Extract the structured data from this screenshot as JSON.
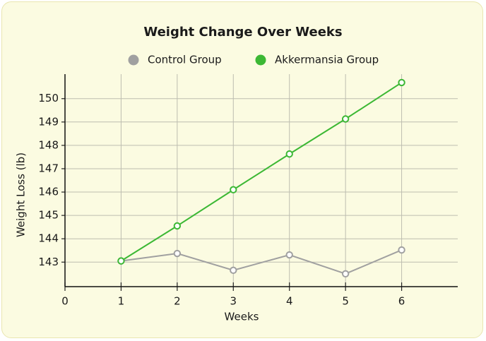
{
  "chart_data": {
    "type": "line",
    "title": "Weight Change Over Weeks",
    "x_label": "Weeks",
    "y_label": "Weight Loss (lb)",
    "x": [
      1,
      2,
      3,
      4,
      5,
      6
    ],
    "series": [
      {
        "name": "Control Group",
        "color": "#a0a0a0",
        "values": [
          143.05,
          143.37,
          142.65,
          143.31,
          142.5,
          143.52
        ]
      },
      {
        "name": "Akkermansia Group",
        "color": "#3cb834",
        "values": [
          143.05,
          144.55,
          146.1,
          147.63,
          149.13,
          150.69
        ]
      }
    ],
    "xlim": [
      0,
      7
    ],
    "xticks": [
      0,
      1,
      2,
      3,
      4,
      5,
      6
    ],
    "ylim": [
      141.95,
      151.05
    ],
    "yticks": [
      143,
      144,
      145,
      146,
      147,
      148,
      149,
      150
    ],
    "grid": true
  }
}
